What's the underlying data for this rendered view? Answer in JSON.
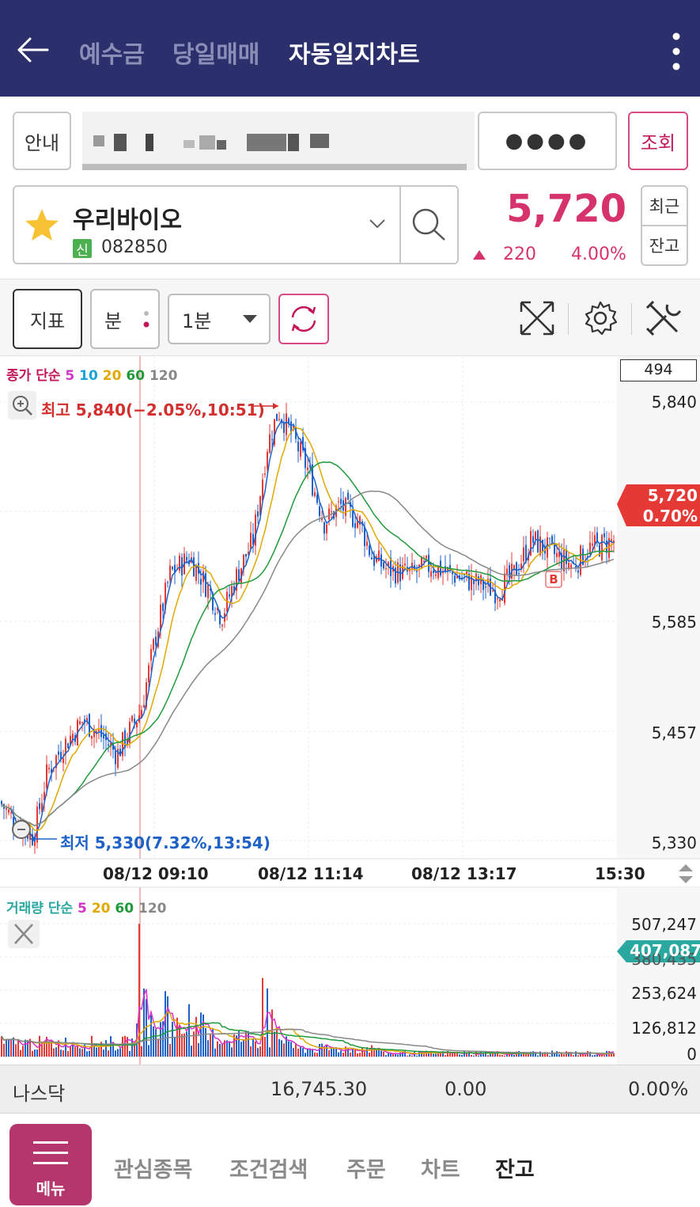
{
  "header": {
    "tabs": [
      {
        "label": "예수금",
        "active": false
      },
      {
        "label": "당일매매",
        "active": false
      },
      {
        "label": "자동일지차트",
        "active": true
      }
    ],
    "icons": {
      "back": "back-arrow-icon",
      "more": "more-vertical-icon"
    }
  },
  "account": {
    "guide_label": "안내",
    "password_mask": "●●●●",
    "query_label": "조회"
  },
  "stock": {
    "name": "우리바이오",
    "badge": "신",
    "code": "082850",
    "price": "5,720",
    "change": "220",
    "change_pct": "4.00%",
    "recent_label": "최근",
    "balance_label": "잔고",
    "up_color": "#d6336c"
  },
  "toolbar": {
    "indicator_label": "지표",
    "unit_label": "분",
    "interval_label": "1분"
  },
  "chart": {
    "legend_prefix": "종가 단순",
    "legend_periods": [
      "5",
      "10",
      "20",
      "60",
      "120"
    ],
    "count_box": "494",
    "high_label": "최고 5,840(−2.05%,10:51)",
    "low_label": "최저 5,330(7.32%,13:54)",
    "current_price_tag": "5,720",
    "current_pct_tag": "0.70%",
    "buy_marker": "B",
    "y_ticks": [
      "5,840",
      "5,585",
      "5,457",
      "5,330"
    ],
    "x_ticks": [
      "08/12 09:10",
      "08/12 11:14",
      "08/12 13:17",
      "15:30"
    ]
  },
  "volume": {
    "legend_prefix": "거래량 단순",
    "legend_periods": [
      "5",
      "20",
      "60",
      "120"
    ],
    "y_ticks": [
      "507,247",
      "380,435",
      "253,624",
      "126,812",
      "0"
    ],
    "current_tag": "407,087"
  },
  "chart_data": {
    "type": "candlestick",
    "title": "",
    "series": [
      {
        "name": "5",
        "color": "#d633c8"
      },
      {
        "name": "10",
        "color": "#1aa3d6"
      },
      {
        "name": "20",
        "color": "#e0a800"
      },
      {
        "name": "60",
        "color": "#1f9a3a"
      },
      {
        "name": "120",
        "color": "#888888"
      }
    ],
    "y_range": [
      5330,
      5840
    ],
    "high": 5840,
    "low": 5330,
    "last": 5720,
    "x_range": [
      "08/12 09:10",
      "15:30"
    ],
    "volume_range": [
      0,
      507247
    ],
    "volume_last": 407087
  },
  "index_bar": {
    "name": "나스닥",
    "value": "16,745.30",
    "change": "0.00",
    "pct": "0.00%"
  },
  "bottom_nav": {
    "menu_label": "메뉴",
    "items": [
      {
        "label": "관심종목",
        "active": false
      },
      {
        "label": "조건검색",
        "active": false
      },
      {
        "label": "주문",
        "active": false
      },
      {
        "label": "차트",
        "active": false
      },
      {
        "label": "잔고",
        "active": true
      }
    ]
  }
}
